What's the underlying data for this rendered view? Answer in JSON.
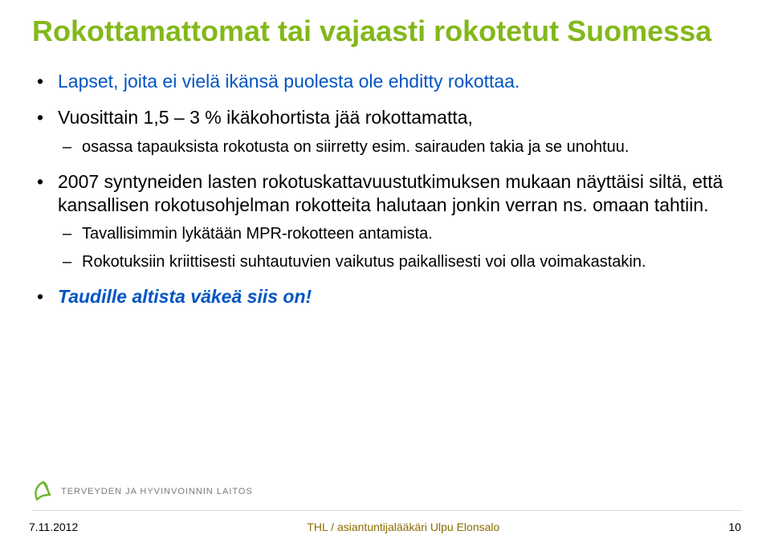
{
  "colors": {
    "title": "#83b81a",
    "highlight": "#0055c4",
    "footer_src": "#8a6d00",
    "logo_fill": "#6eb52c",
    "logo_text": "#7a7a7a",
    "divider": "#d9d9d9",
    "text": "#000000",
    "background": "#ffffff"
  },
  "title": "Rokottamattomat tai vajaasti rokotetut Suomessa",
  "bullets": [
    {
      "spans": [
        {
          "text": "Lapset, joita ei vielä ikänsä puolesta ole ehditty rokottaa.",
          "style": "highlight"
        }
      ]
    },
    {
      "spans": [
        {
          "text": "Vuosittain 1,5 – 3 % ikäkohortista jää rokottamatta,",
          "style": "plain"
        }
      ],
      "sub": [
        {
          "text": "osassa tapauksista rokotusta on siirretty esim. sairauden takia ja se unohtuu."
        }
      ]
    },
    {
      "spans": [
        {
          "text": "2007 syntyneiden lasten rokotuskattavuustutkimuksen mukaan näyttäisi siltä, että kansallisen rokotusohjelman rokotteita halutaan jonkin verran ns. omaan tahtiin.",
          "style": "plain"
        }
      ],
      "sub": [
        {
          "text": "Tavallisimmin lykätään MPR-rokotteen antamista."
        },
        {
          "text": "Rokotuksiin kriittisesti suhtautuvien vaikutus paikallisesti voi olla voimakastakin."
        }
      ]
    },
    {
      "spans": [
        {
          "text": "Taudille altista väkeä siis on!",
          "style": "highlight_bold_ital"
        }
      ]
    }
  ],
  "logo_text": "TERVEYDEN JA HYVINVOINNIN LAITOS",
  "footer": {
    "date": "7.11.2012",
    "source": "THL / asiantuntijalääkäri Ulpu Elonsalo",
    "page": "10"
  }
}
